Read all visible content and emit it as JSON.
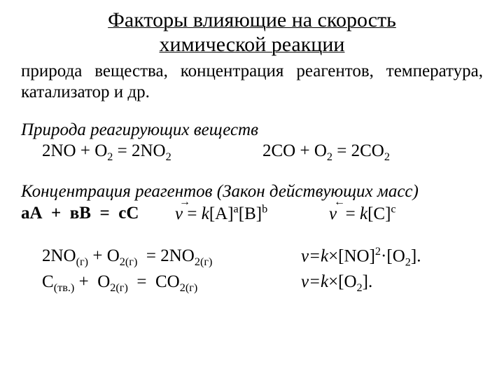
{
  "colors": {
    "bg": "#ffffff",
    "text": "#000000"
  },
  "fonts": {
    "family": "Times New Roman",
    "title_size_pt": 30,
    "body_size_pt": 25
  },
  "title": {
    "line1": "Факторы влияющие на скорость",
    "line2": "химической реакции"
  },
  "intro": "природа вещества, концентрация реагентов, температура, катализатор и др.",
  "nature": {
    "heading": "Природа реагирующих веществ",
    "eq1_html": "2NO + O<sub>2</sub> = 2NO<sub>2</sub>",
    "eq2_html": "2CO + O<sub>2</sub> = 2CO<sub>2</sub>"
  },
  "law": {
    "heading": "Концентрация реагентов (Закон действующих масс)",
    "generic_html": "аА&nbsp;&nbsp;+&nbsp;&nbsp;вВ&nbsp;&nbsp;=&nbsp;&nbsp;сС",
    "forward_html": "<i>v</i> = <i>k</i>[A]<sup>a</sup>[B]<sup>b</sup>",
    "backward_html": "<i>v</i>&nbsp; = <i>k</i>[C]<sup>c</sup>",
    "arrow_fwd": "→",
    "arrow_back": "←"
  },
  "examples": {
    "r1_left_html": "2NO<span class=\"subpar\">(г)</span> + O<sub>2</sub><span class=\"subpar\">(г)</span>&nbsp; = 2NO<sub>2</sub><span class=\"subpar\">(г)</span>",
    "r1_right_html": "<i>v=k</i>×[NO]<sup>2</sup>·[O<sub>2</sub>].",
    "r2_left_html": "C<span class=\"subpar\">(тв.)</span> +&nbsp; O<sub>2</sub><span class=\"subpar\">(г)</span>&nbsp; =&nbsp; CO<sub>2</sub><span class=\"subpar\">(г)</span>",
    "r2_right_html": "<i>v=k</i>×[O<sub>2</sub>]."
  }
}
